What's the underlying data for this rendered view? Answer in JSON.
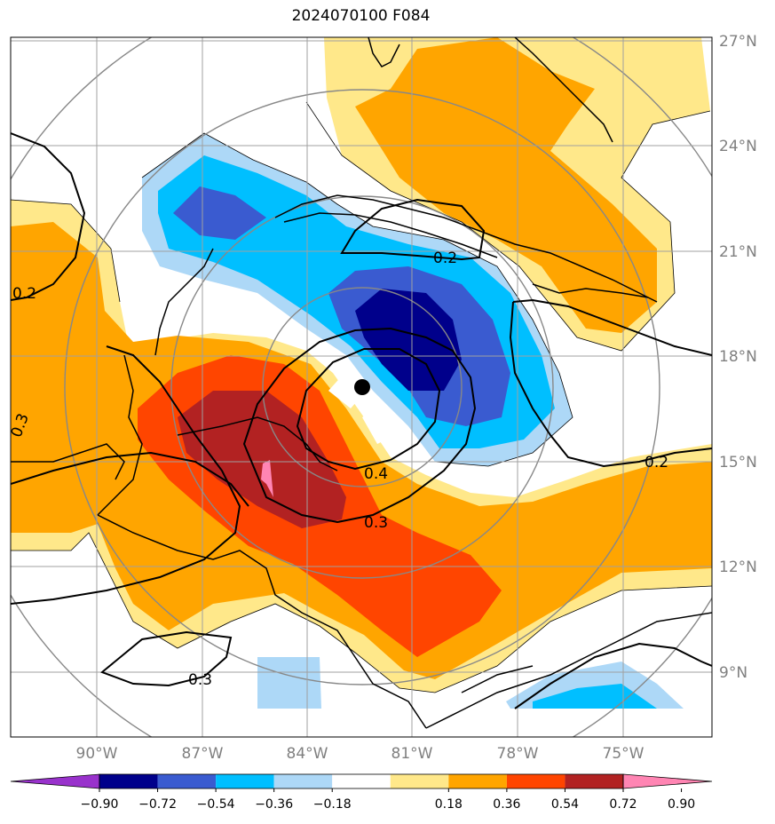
{
  "title": "2024070100 F084",
  "lat_labels": [
    "27°N",
    "24°N",
    "21°N",
    "18°N",
    "15°N",
    "12°N",
    "9°N"
  ],
  "lon_labels": [
    "90°W",
    "87°W",
    "84°W",
    "81°W",
    "78°W",
    "75°W"
  ],
  "colorbar": {
    "colors": [
      "#9932cc",
      "#00008b",
      "#3a5bd0",
      "#00bfff",
      "#add8f7",
      "#ffffff",
      "#ffe88a",
      "#ffa500",
      "#ff4500",
      "#b22222",
      "#ff85b3"
    ],
    "ticks": [
      "−0.90",
      "−0.72",
      "−0.54",
      "−0.36",
      "−0.18",
      "0.18",
      "0.36",
      "0.54",
      "0.72",
      "0.90"
    ]
  },
  "contour_labels": [
    "0.2",
    "0.2",
    "0.4",
    "0.3",
    "0.3",
    "0.2",
    "0.3"
  ],
  "colors": {
    "dark_blue": "#00008b",
    "med_blue": "#3a5bd0",
    "sky_blue": "#00bfff",
    "light_blue": "#add8f7",
    "light_yellow": "#ffe88a",
    "orange": "#ffa500",
    "red_orange": "#ff4500",
    "dark_red": "#b22222",
    "pink": "#ff85b3"
  }
}
